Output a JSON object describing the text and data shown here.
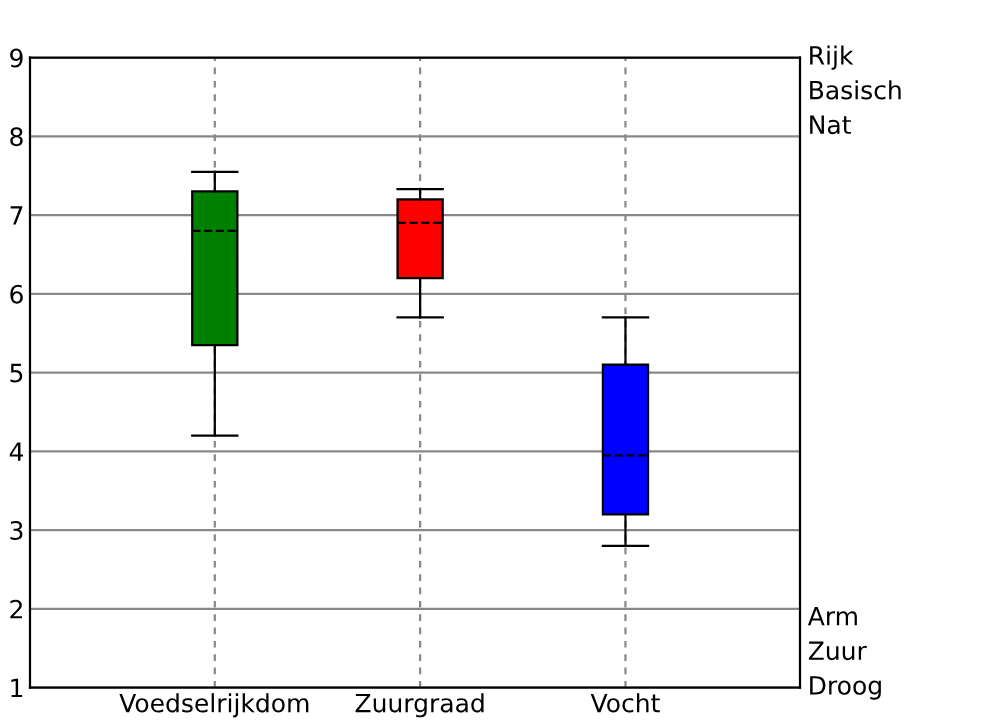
{
  "chart_data": {
    "type": "box",
    "categories": [
      "Voedselrijkdom",
      "Zuurgraad",
      "Vocht"
    ],
    "boxes": [
      {
        "low": 4.2,
        "q1": 5.35,
        "median": 6.8,
        "q3": 7.3,
        "high": 7.55
      },
      {
        "low": 5.7,
        "q1": 6.2,
        "median": 6.9,
        "q3": 7.2,
        "high": 7.33
      },
      {
        "low": 2.8,
        "q1": 3.2,
        "median": 3.95,
        "q3": 5.1,
        "high": 5.7
      }
    ],
    "colors": [
      "#008000",
      "#ff0000",
      "#0000ff"
    ],
    "ylim": [
      1,
      9
    ],
    "yticks": [
      1,
      2,
      3,
      4,
      5,
      6,
      7,
      8,
      9
    ],
    "grid": true,
    "legend": false,
    "annotations": [
      "Rijk",
      "Basisch",
      "Nat",
      "Arm",
      "Zuur",
      "Droog"
    ]
  }
}
